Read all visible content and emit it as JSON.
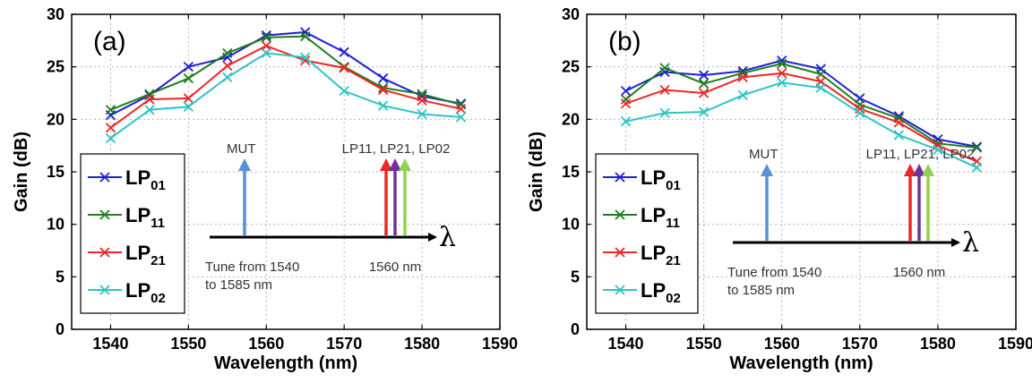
{
  "colors": {
    "LP01": "#1f1fd6",
    "LP11": "#1e7d1e",
    "LP21": "#ee2626",
    "LP02": "#2ec4c4",
    "arrow_mut": "#5b8fd6",
    "arrow_lp11": "#ee2626",
    "arrow_lp21": "#7030a0",
    "arrow_lp02": "#92d050"
  },
  "chart_data": [
    {
      "type": "line",
      "panel_label": "(a)",
      "xlabel": "Wavelength (nm)",
      "ylabel": "Gain (dB)",
      "xlim": [
        1535,
        1590
      ],
      "ylim": [
        0,
        30
      ],
      "xticks": [
        1540,
        1550,
        1560,
        1570,
        1580,
        1590
      ],
      "yticks": [
        0,
        5,
        10,
        15,
        20,
        25,
        30
      ],
      "grid": true,
      "legend_position": "bottom-left",
      "x": [
        1540,
        1545,
        1550,
        1555,
        1560,
        1565,
        1570,
        1575,
        1580,
        1585
      ],
      "series": [
        {
          "name": "LP",
          "sub": "01",
          "color_key": "LP01",
          "values": [
            20.4,
            22.3,
            25.0,
            25.9,
            28.0,
            28.3,
            26.4,
            23.9,
            22.2,
            21.5
          ]
        },
        {
          "name": "LP",
          "sub": "11",
          "color_key": "LP11",
          "values": [
            20.9,
            22.4,
            23.9,
            26.3,
            27.8,
            27.9,
            25.0,
            23.0,
            22.4,
            21.4
          ]
        },
        {
          "name": "LP",
          "sub": "21",
          "color_key": "LP21",
          "values": [
            19.2,
            21.9,
            22.0,
            25.1,
            27.0,
            25.6,
            24.9,
            22.8,
            21.8,
            21.0
          ]
        },
        {
          "name": "LP",
          "sub": "02",
          "color_key": "LP02",
          "values": [
            18.2,
            20.9,
            21.2,
            24.0,
            26.3,
            25.9,
            22.7,
            21.3,
            20.5,
            20.2
          ]
        }
      ],
      "inset": {
        "mut_label": "MUT",
        "modes_label": "LP11, LP21, LP02",
        "tune_line1": "Tune from 1540",
        "tune_line2": "to 1585 nm",
        "fixed_label": "1560 nm",
        "axis_symbol": "λ"
      }
    },
    {
      "type": "line",
      "panel_label": "(b)",
      "xlabel": "Wavelength (nm)",
      "ylabel": "Gain (dB)",
      "xlim": [
        1535,
        1590
      ],
      "ylim": [
        0,
        30
      ],
      "xticks": [
        1540,
        1550,
        1560,
        1570,
        1580,
        1590
      ],
      "yticks": [
        0,
        5,
        10,
        15,
        20,
        25,
        30
      ],
      "grid": true,
      "legend_position": "bottom-left",
      "x": [
        1540,
        1545,
        1550,
        1555,
        1560,
        1565,
        1570,
        1575,
        1580,
        1585
      ],
      "series": [
        {
          "name": "LP",
          "sub": "01",
          "color_key": "LP01",
          "values": [
            22.7,
            24.5,
            24.2,
            24.6,
            25.6,
            24.8,
            22.0,
            20.3,
            18.1,
            17.4
          ]
        },
        {
          "name": "LP",
          "sub": "11",
          "color_key": "LP11",
          "values": [
            21.9,
            24.9,
            23.4,
            24.4,
            25.3,
            24.3,
            21.4,
            20.1,
            17.7,
            17.3
          ]
        },
        {
          "name": "LP",
          "sub": "21",
          "color_key": "LP21",
          "values": [
            21.5,
            22.8,
            22.5,
            24.0,
            24.4,
            23.6,
            21.0,
            19.7,
            17.5,
            16.0
          ]
        },
        {
          "name": "LP",
          "sub": "02",
          "color_key": "LP02",
          "values": [
            19.8,
            20.6,
            20.7,
            22.3,
            23.5,
            23.0,
            20.6,
            18.5,
            17.1,
            15.4
          ]
        }
      ],
      "inset": {
        "mut_label": "MUT",
        "modes_label": "LP11, LP21, LP02",
        "tune_line1": "Tune from 1540",
        "tune_line2": "to 1585 nm",
        "fixed_label": "1560 nm",
        "axis_symbol": "λ"
      }
    }
  ]
}
